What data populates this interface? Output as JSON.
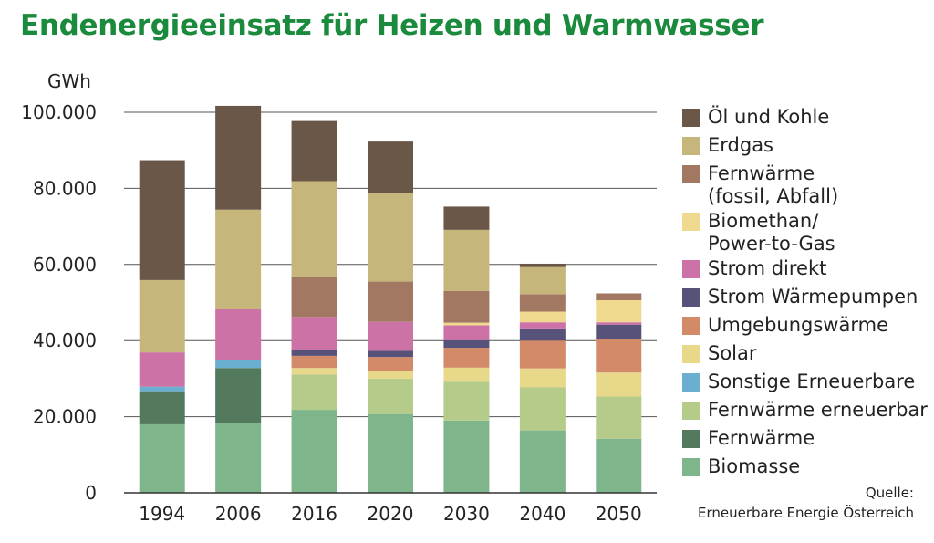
{
  "title": "Endenergieeinsatz für Heizen und Warmwasser",
  "source": {
    "line1": "Quelle:",
    "line2": "Erneuerbare Energie Österreich"
  },
  "chart_data": {
    "type": "bar",
    "stacked": true,
    "ylabel": "GWh",
    "ylim": [
      0,
      100000
    ],
    "yticks": [
      0,
      20000,
      40000,
      60000,
      80000,
      100000
    ],
    "ytick_labels": [
      "0",
      "20.000",
      "40.000",
      "60.000",
      "80.000",
      "100.000"
    ],
    "grid": true,
    "legend_position": "right",
    "categories": [
      "1994",
      "2006",
      "2016",
      "2020",
      "2030",
      "2040",
      "2050"
    ],
    "series": [
      {
        "name": "Biomasse",
        "color": "#7fb58a",
        "values": [
          18000,
          18300,
          21800,
          20700,
          19000,
          16400,
          14200
        ]
      },
      {
        "name": "Fernwärme",
        "color": "#537a5c",
        "values": [
          8700,
          14500,
          0,
          0,
          0,
          0,
          0
        ]
      },
      {
        "name": "Fernwärme erneuerbar",
        "color": "#b4cb8a",
        "values": [
          0,
          0,
          9300,
          9300,
          10200,
          11300,
          11100
        ]
      },
      {
        "name": "Sonstige Erneuerbare",
        "color": "#6aafd0",
        "values": [
          1200,
          2200,
          0,
          0,
          0,
          0,
          0
        ]
      },
      {
        "name": "Solar",
        "color": "#e8d98a",
        "values": [
          0,
          0,
          1700,
          2000,
          3700,
          5000,
          6300
        ]
      },
      {
        "name": "Umgebungswärme",
        "color": "#d38a68",
        "values": [
          0,
          0,
          3200,
          3700,
          5200,
          7300,
          8800
        ]
      },
      {
        "name": "Strom Wärmepumpen",
        "color": "#57527a",
        "values": [
          0,
          0,
          1500,
          1600,
          2000,
          3200,
          3800
        ]
      },
      {
        "name": "Strom direkt",
        "color": "#cc72a6",
        "values": [
          9000,
          13200,
          8700,
          7600,
          3900,
          1600,
          600
        ]
      },
      {
        "name": "Biomethan/\nPower-to-Gas",
        "color": "#efd98e",
        "values": [
          0,
          0,
          0,
          0,
          700,
          2800,
          5800
        ]
      },
      {
        "name": "Fernwärme\n(fossil, Abfall)",
        "color": "#a37862",
        "values": [
          0,
          0,
          10600,
          10600,
          8300,
          4600,
          1800
        ]
      },
      {
        "name": "Erdgas",
        "color": "#c6b67c",
        "values": [
          19000,
          26200,
          25100,
          23300,
          16100,
          7100,
          0
        ]
      },
      {
        "name": "Öl und Kohle",
        "color": "#6a5747",
        "values": [
          31500,
          27300,
          15800,
          13500,
          6100,
          900,
          0
        ]
      }
    ]
  }
}
